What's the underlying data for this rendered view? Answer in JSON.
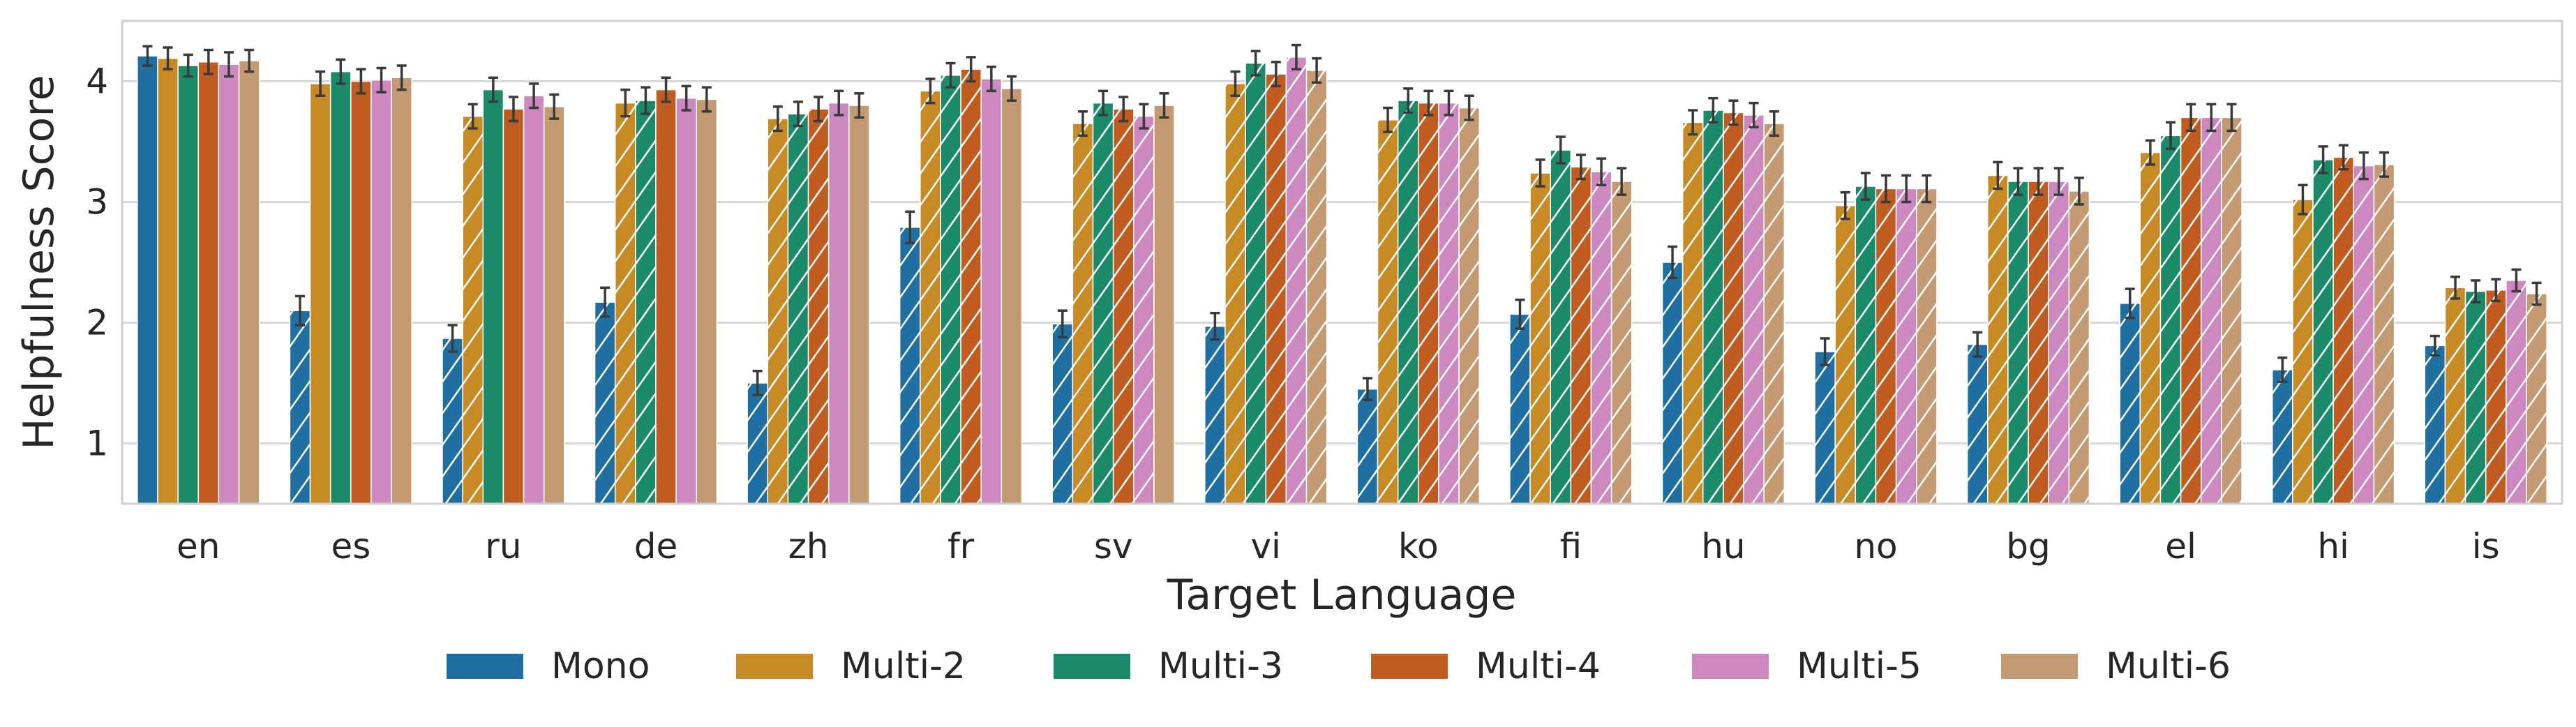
{
  "chart_data": {
    "type": "bar",
    "title": "",
    "xlabel": "Target Language",
    "ylabel": "Helpfulness Score",
    "ylim": [
      0.5,
      4.5
    ],
    "yticks": [
      1,
      2,
      3,
      4
    ],
    "grid": true,
    "legend_position": "bottom",
    "categories": [
      "en",
      "es",
      "ru",
      "de",
      "zh",
      "fr",
      "sv",
      "vi",
      "ko",
      "fi",
      "hu",
      "no",
      "bg",
      "el",
      "hi",
      "is"
    ],
    "hatch_rule": "hatched bars mark models not trained on the target language",
    "series": [
      {
        "name": "Mono",
        "color": "#1f6fa3",
        "values": [
          4.21,
          2.1,
          1.87,
          2.17,
          1.5,
          2.79,
          1.99,
          1.97,
          1.45,
          2.07,
          2.5,
          1.76,
          1.82,
          2.16,
          1.61,
          1.81
        ],
        "err": [
          0.08,
          0.12,
          0.11,
          0.12,
          0.1,
          0.13,
          0.11,
          0.11,
          0.09,
          0.12,
          0.13,
          0.11,
          0.1,
          0.12,
          0.1,
          0.08
        ],
        "hatched": [
          false,
          true,
          true,
          true,
          true,
          true,
          true,
          true,
          true,
          true,
          true,
          true,
          true,
          true,
          true,
          true
        ]
      },
      {
        "name": "Multi-2",
        "color": "#c88a25",
        "values": [
          4.19,
          3.98,
          3.71,
          3.82,
          3.69,
          3.92,
          3.65,
          3.98,
          3.68,
          3.24,
          3.66,
          2.97,
          3.22,
          3.41,
          3.02,
          2.29
        ],
        "err": [
          0.09,
          0.1,
          0.1,
          0.11,
          0.1,
          0.1,
          0.1,
          0.1,
          0.1,
          0.11,
          0.1,
          0.11,
          0.11,
          0.1,
          0.12,
          0.09
        ],
        "hatched": [
          false,
          false,
          true,
          true,
          true,
          true,
          true,
          true,
          true,
          true,
          true,
          true,
          true,
          true,
          true,
          true
        ]
      },
      {
        "name": "Multi-3",
        "color": "#1a8a6a",
        "values": [
          4.13,
          4.08,
          3.93,
          3.84,
          3.73,
          4.05,
          3.82,
          4.15,
          3.84,
          3.43,
          3.76,
          3.13,
          3.17,
          3.55,
          3.35,
          2.26
        ],
        "err": [
          0.09,
          0.1,
          0.1,
          0.11,
          0.1,
          0.1,
          0.1,
          0.1,
          0.1,
          0.11,
          0.1,
          0.11,
          0.11,
          0.11,
          0.11,
          0.09
        ],
        "hatched": [
          false,
          false,
          false,
          true,
          true,
          true,
          true,
          true,
          true,
          true,
          true,
          true,
          true,
          true,
          true,
          true
        ]
      },
      {
        "name": "Multi-4",
        "color": "#c05c20",
        "values": [
          4.16,
          4.0,
          3.77,
          3.93,
          3.77,
          4.1,
          3.77,
          4.06,
          3.82,
          3.29,
          3.74,
          3.11,
          3.17,
          3.7,
          3.37,
          2.27
        ],
        "err": [
          0.1,
          0.1,
          0.1,
          0.1,
          0.1,
          0.1,
          0.1,
          0.1,
          0.1,
          0.1,
          0.1,
          0.11,
          0.11,
          0.11,
          0.1,
          0.09
        ],
        "hatched": [
          false,
          false,
          false,
          false,
          true,
          true,
          true,
          true,
          true,
          true,
          true,
          true,
          true,
          true,
          true,
          true
        ]
      },
      {
        "name": "Multi-5",
        "color": "#cc88bf",
        "values": [
          4.14,
          4.01,
          3.88,
          3.86,
          3.82,
          4.02,
          3.71,
          4.2,
          3.82,
          3.25,
          3.72,
          3.11,
          3.17,
          3.7,
          3.3,
          2.35
        ],
        "err": [
          0.1,
          0.1,
          0.1,
          0.1,
          0.1,
          0.1,
          0.1,
          0.1,
          0.1,
          0.11,
          0.1,
          0.11,
          0.11,
          0.11,
          0.11,
          0.09
        ],
        "hatched": [
          false,
          false,
          false,
          false,
          false,
          false,
          true,
          true,
          true,
          true,
          true,
          true,
          true,
          true,
          true,
          true
        ]
      },
      {
        "name": "Multi-6",
        "color": "#c49a72",
        "values": [
          4.17,
          4.03,
          3.79,
          3.85,
          3.8,
          3.94,
          3.8,
          4.09,
          3.78,
          3.17,
          3.65,
          3.11,
          3.09,
          3.7,
          3.31,
          2.24
        ],
        "err": [
          0.09,
          0.1,
          0.1,
          0.1,
          0.1,
          0.1,
          0.1,
          0.1,
          0.1,
          0.11,
          0.1,
          0.11,
          0.11,
          0.11,
          0.1,
          0.09
        ],
        "hatched": [
          false,
          false,
          false,
          false,
          false,
          false,
          false,
          true,
          true,
          true,
          true,
          true,
          true,
          true,
          true,
          true
        ]
      }
    ]
  }
}
